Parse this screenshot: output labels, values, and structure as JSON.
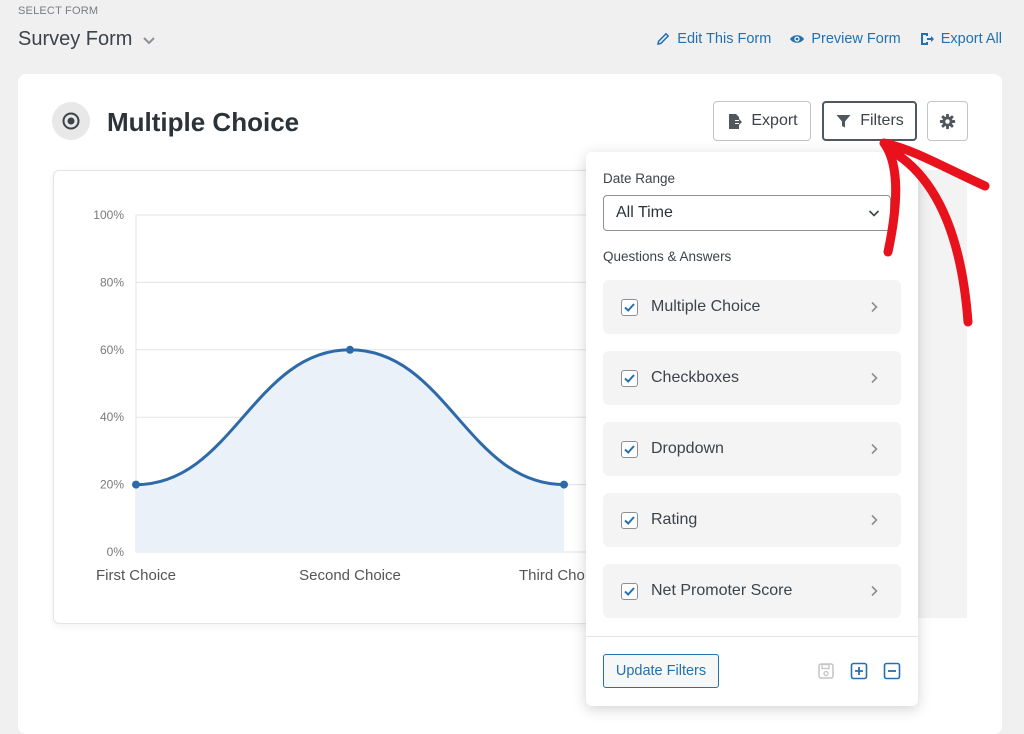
{
  "header": {
    "select_label": "SELECT FORM",
    "form_name": "Survey Form",
    "actions": [
      {
        "label": "Edit This Form",
        "icon": "pencil-icon"
      },
      {
        "label": "Preview Form",
        "icon": "eye-icon"
      },
      {
        "label": "Export All",
        "icon": "export-icon"
      }
    ]
  },
  "question": {
    "title": "Multiple Choice",
    "icon": "radio-icon",
    "export_label": "Export",
    "filters_label": "Filters"
  },
  "chart_data": {
    "type": "area",
    "categories": [
      "First Choice",
      "Second Choice",
      "Third Choice"
    ],
    "values": [
      20,
      60,
      20
    ],
    "ylim": [
      0,
      100
    ],
    "yticks": [
      "0%",
      "20%",
      "40%",
      "60%",
      "80%",
      "100%"
    ],
    "xtick_labels": [
      "First Choice",
      "Second Choice",
      "Third Cho"
    ],
    "color": "#2e6aa8",
    "fill": "#eaf1f9",
    "grid": true
  },
  "filters": {
    "date_range_label": "Date Range",
    "date_range_value": "All Time",
    "qa_label": "Questions & Answers",
    "items": [
      {
        "label": "Multiple Choice",
        "checked": true
      },
      {
        "label": "Checkboxes",
        "checked": true
      },
      {
        "label": "Dropdown",
        "checked": true
      },
      {
        "label": "Rating",
        "checked": true
      },
      {
        "label": "Net Promoter Score",
        "checked": true
      }
    ],
    "update_label": "Update Filters"
  },
  "colors": {
    "accent": "#2271b1",
    "annotation": "#e8121d"
  }
}
